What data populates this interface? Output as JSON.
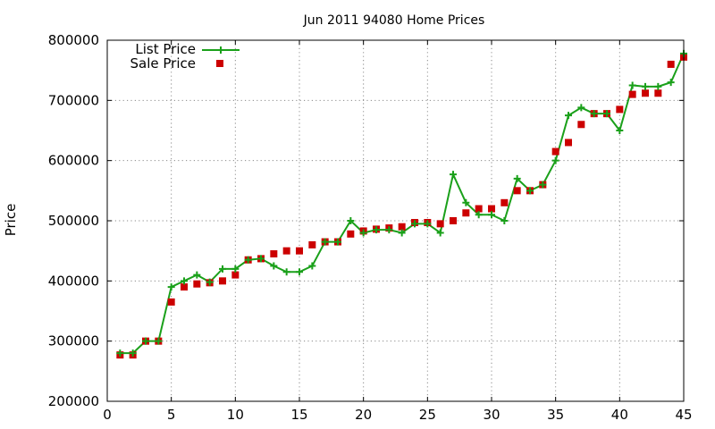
{
  "chart_data": {
    "type": "line",
    "title": "Jun 2011 94080 Home Prices",
    "xlabel": "",
    "ylabel": "Price",
    "xlim": [
      0,
      45
    ],
    "ylim": [
      200000,
      800000
    ],
    "xticks": [
      0,
      5,
      10,
      15,
      20,
      25,
      30,
      35,
      40,
      45
    ],
    "yticks": [
      200000,
      300000,
      400000,
      500000,
      600000,
      700000,
      800000
    ],
    "grid": true,
    "legend_position": "top-left",
    "series": [
      {
        "name": "List Price",
        "style": "line+cross",
        "color": "#1aa01a",
        "x": [
          1,
          2,
          3,
          4,
          5,
          6,
          7,
          8,
          9,
          10,
          11,
          12,
          13,
          14,
          15,
          16,
          17,
          18,
          19,
          20,
          21,
          22,
          23,
          24,
          25,
          26,
          27,
          28,
          29,
          30,
          31,
          32,
          33,
          34,
          35,
          36,
          37,
          38,
          39,
          40,
          41,
          42,
          43,
          44,
          45
        ],
        "values": [
          280000,
          280000,
          300000,
          300000,
          390000,
          400000,
          410000,
          398000,
          420000,
          420000,
          435000,
          437000,
          425000,
          415000,
          415000,
          425000,
          465000,
          465000,
          500000,
          480000,
          485000,
          485000,
          480000,
          495000,
          495000,
          480000,
          577000,
          530000,
          510000,
          510000,
          500000,
          570000,
          550000,
          560000,
          600000,
          675000,
          688000,
          678000,
          678000,
          650000,
          725000,
          723000,
          723000,
          730000,
          778000
        ]
      },
      {
        "name": "Sale Price",
        "style": "square",
        "color": "#cc0000",
        "x": [
          1,
          2,
          3,
          4,
          5,
          6,
          7,
          8,
          9,
          10,
          11,
          12,
          13,
          14,
          15,
          16,
          17,
          18,
          19,
          20,
          21,
          22,
          23,
          24,
          25,
          26,
          27,
          28,
          29,
          30,
          31,
          32,
          33,
          34,
          35,
          36,
          37,
          38,
          39,
          40,
          41,
          42,
          43,
          44,
          45
        ],
        "values": [
          277000,
          277000,
          300000,
          300000,
          365000,
          390000,
          395000,
          397000,
          400000,
          410000,
          435000,
          437000,
          445000,
          450000,
          450000,
          460000,
          465000,
          465000,
          478000,
          483000,
          486000,
          488000,
          490000,
          497000,
          497000,
          495000,
          500000,
          513000,
          520000,
          520000,
          530000,
          550000,
          550000,
          560000,
          615000,
          630000,
          660000,
          678000,
          678000,
          685000,
          710000,
          712000,
          712000,
          760000,
          772000
        ]
      }
    ]
  }
}
